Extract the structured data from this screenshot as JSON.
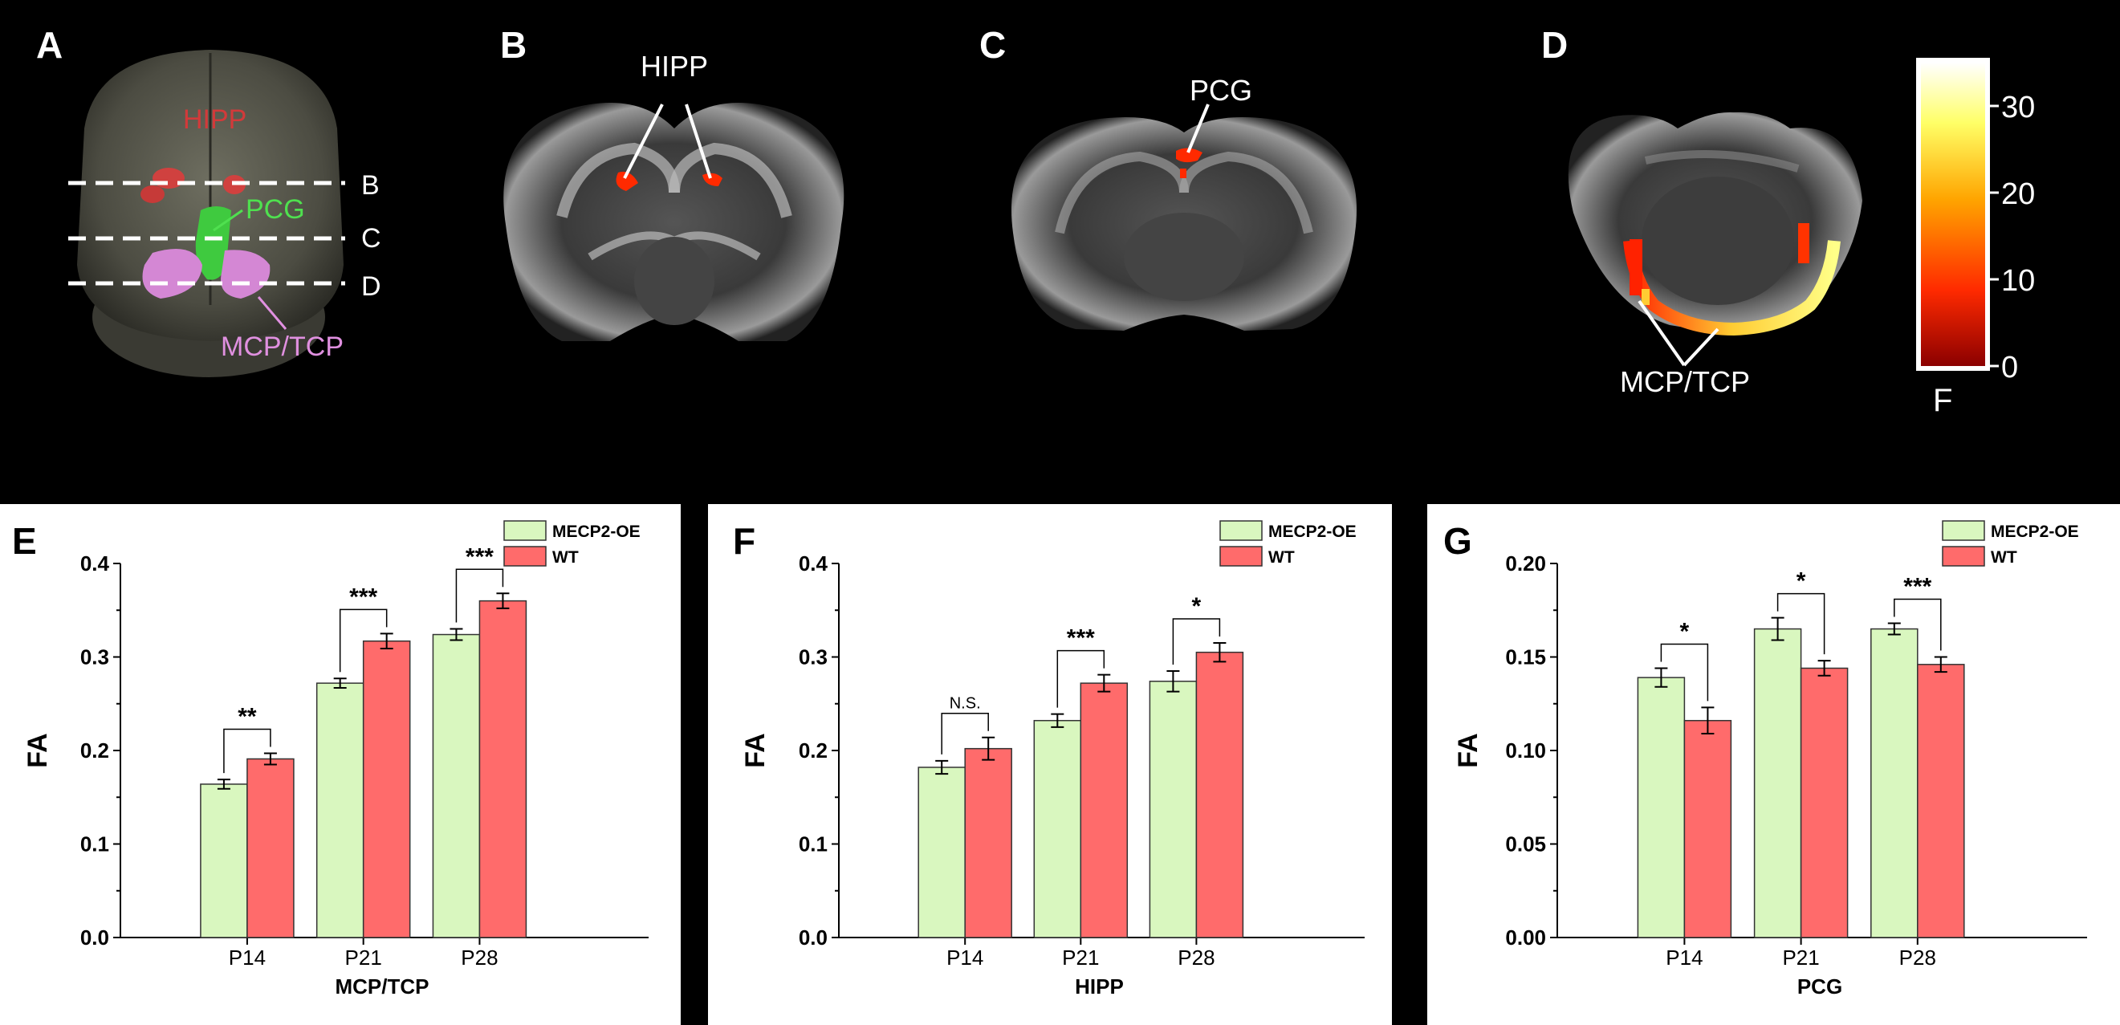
{
  "figure": {
    "panel_labels": {
      "A": "A",
      "B": "B",
      "C": "C",
      "D": "D",
      "E": "E",
      "F": "F",
      "G": "G"
    },
    "panel_a": {
      "hipp": "HIPP",
      "pcg": "PCG",
      "mcp": "MCP/TCP",
      "slice_b": "B",
      "slice_c": "C",
      "slice_d": "D"
    },
    "panel_b": {
      "label": "HIPP"
    },
    "panel_c": {
      "label": "PCG"
    },
    "panel_d": {
      "label": "MCP/TCP"
    },
    "colorbar": {
      "title": "F",
      "ticks": [
        "0",
        "10",
        "20",
        "30"
      ],
      "range": [
        0,
        35
      ],
      "colors": [
        "#8b0000",
        "#ff2a00",
        "#ffa500",
        "#ffff66",
        "#ffffff"
      ]
    }
  },
  "chart_data": [
    {
      "type": "bar",
      "xlabel": "MCP/TCP",
      "ylabel": "FA",
      "ylim": [
        0,
        0.4
      ],
      "yticks": [
        "0.0",
        "0.1",
        "0.2",
        "0.3",
        "0.4"
      ],
      "categories": [
        "P14",
        "P21",
        "P28"
      ],
      "legend_position": "top-right",
      "series": [
        {
          "name": "MECP2-OE",
          "color": "#d9f7bf",
          "values": [
            0.164,
            0.272,
            0.324
          ],
          "errors": [
            0.005,
            0.005,
            0.006
          ]
        },
        {
          "name": "WT",
          "color": "#ff6b6b",
          "values": [
            0.191,
            0.317,
            0.36
          ],
          "errors": [
            0.006,
            0.008,
            0.008
          ]
        }
      ],
      "significance": [
        "**",
        "***",
        "***"
      ]
    },
    {
      "type": "bar",
      "xlabel": "HIPP",
      "ylabel": "FA",
      "ylim": [
        0,
        0.4
      ],
      "yticks": [
        "0.0",
        "0.1",
        "0.2",
        "0.3",
        "0.4"
      ],
      "categories": [
        "P14",
        "P21",
        "P28"
      ],
      "legend_position": "top-right",
      "series": [
        {
          "name": "MECP2-OE",
          "color": "#d9f7bf",
          "values": [
            0.182,
            0.232,
            0.274
          ],
          "errors": [
            0.007,
            0.007,
            0.011
          ]
        },
        {
          "name": "WT",
          "color": "#ff6b6b",
          "values": [
            0.202,
            0.272,
            0.305
          ],
          "errors": [
            0.012,
            0.009,
            0.01
          ]
        }
      ],
      "significance": [
        "N.S.",
        "***",
        "*"
      ]
    },
    {
      "type": "bar",
      "xlabel": "PCG",
      "ylabel": "FA",
      "ylim": [
        0,
        0.2
      ],
      "yticks": [
        "0.00",
        "0.05",
        "0.10",
        "0.15",
        "0.20"
      ],
      "categories": [
        "P14",
        "P21",
        "P28"
      ],
      "legend_position": "top-right",
      "series": [
        {
          "name": "MECP2-OE",
          "color": "#d9f7bf",
          "values": [
            0.139,
            0.165,
            0.165
          ],
          "errors": [
            0.005,
            0.006,
            0.003
          ]
        },
        {
          "name": "WT",
          "color": "#ff6b6b",
          "values": [
            0.116,
            0.144,
            0.146
          ],
          "errors": [
            0.007,
            0.004,
            0.004
          ]
        }
      ],
      "significance": [
        "*",
        "*",
        "***"
      ]
    }
  ]
}
